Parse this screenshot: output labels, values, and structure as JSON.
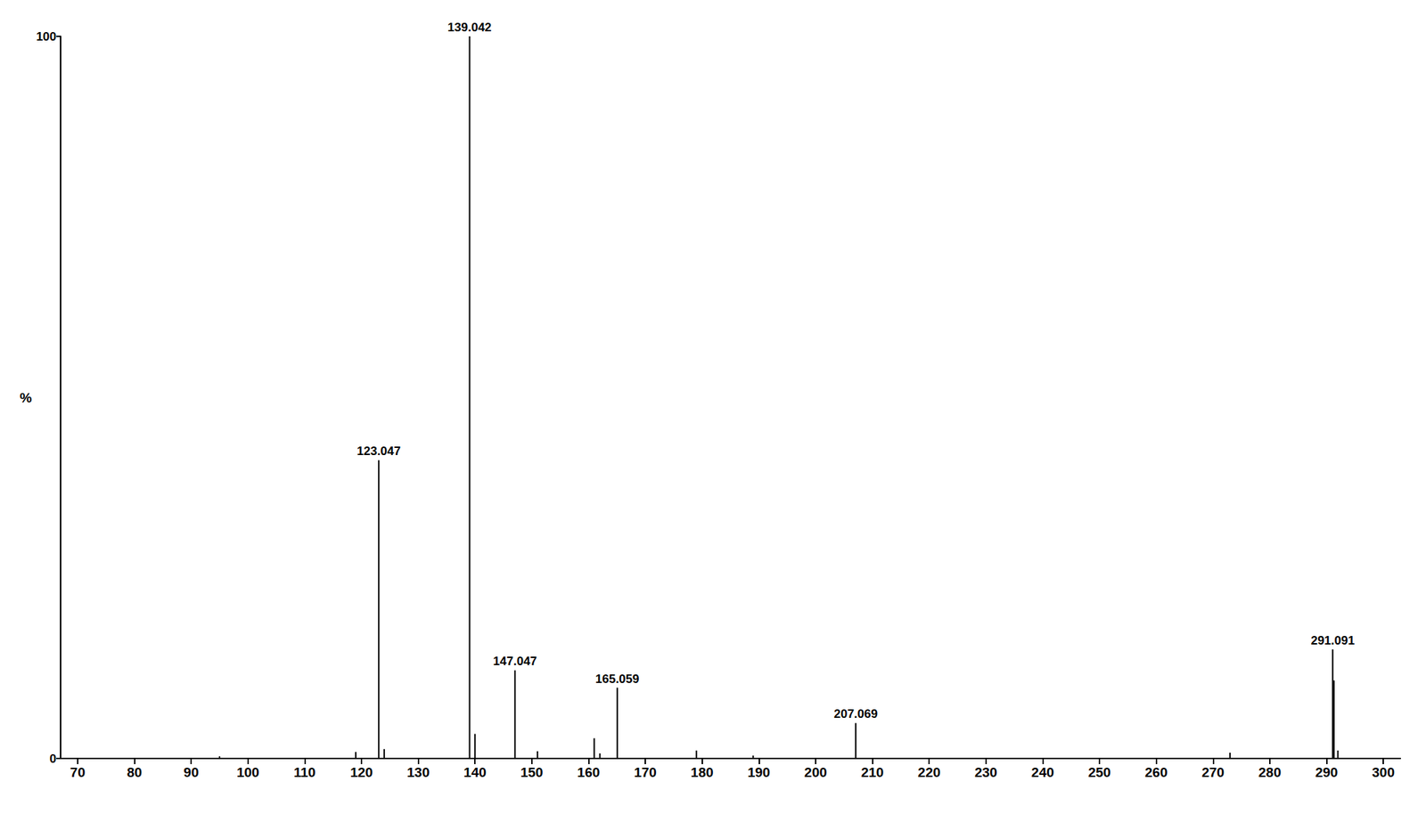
{
  "chart_data": {
    "type": "bar",
    "ylabel": "%",
    "x": [
      95.0,
      119.0,
      123.047,
      124.0,
      139.042,
      140.0,
      147.047,
      151.0,
      161.0,
      162.0,
      165.059,
      179.0,
      189.0,
      207.069,
      273.0,
      291.091,
      291.3,
      292.0
    ],
    "values": [
      0.3,
      0.9,
      41.3,
      1.3,
      100,
      3.4,
      12.2,
      1.0,
      2.8,
      0.7,
      9.8,
      1.1,
      0.4,
      4.9,
      0.8,
      15.1,
      10.8,
      1.1
    ],
    "color": "#000000",
    "annotations": [
      {
        "x": 123.047,
        "text": "123.047"
      },
      {
        "x": 139.042,
        "text": "139.042"
      },
      {
        "x": 147.047,
        "text": "147.047"
      },
      {
        "x": 165.059,
        "text": "165.059"
      },
      {
        "x": 207.069,
        "text": "207.069"
      },
      {
        "x": 291.091,
        "text": "291.091"
      }
    ],
    "xlim": [
      67,
      303
    ],
    "xticks": [
      70,
      80,
      90,
      100,
      110,
      120,
      130,
      140,
      150,
      160,
      170,
      180,
      190,
      200,
      210,
      220,
      230,
      240,
      250,
      260,
      270,
      280,
      290,
      300
    ],
    "ylim": [
      0,
      100
    ],
    "yticks": [
      0,
      100
    ],
    "grid": false
  }
}
